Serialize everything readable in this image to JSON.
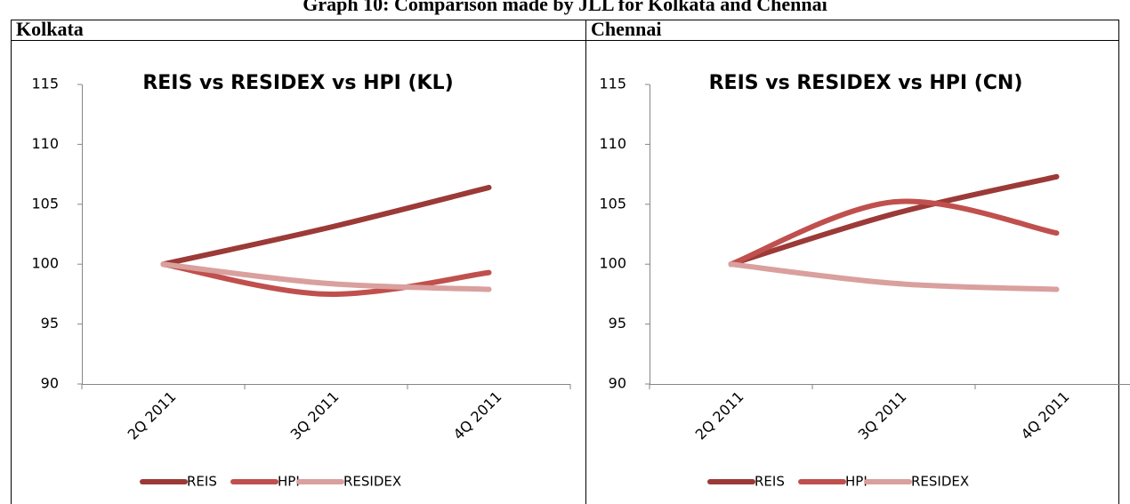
{
  "title": "Graph 10: Comparison made by JLL for Kolkata and Chennai",
  "table": {
    "headers": [
      "Kolkata",
      "Chennai"
    ]
  },
  "chart_data": [
    {
      "type": "line",
      "title": "REIS vs RESIDEX vs HPI (KL)",
      "categories": [
        "2Q 2011",
        "3Q 2011",
        "4Q 2011"
      ],
      "series": [
        {
          "name": "REIS",
          "color": "#9b3a37",
          "values": [
            100,
            103,
            106.4
          ]
        },
        {
          "name": "HPI",
          "color": "#c0504d",
          "values": [
            100,
            97.5,
            99.3
          ]
        },
        {
          "name": "RESIDEX",
          "color": "#d9a09e",
          "values": [
            100,
            98.4,
            97.9
          ]
        }
      ],
      "ylim": [
        90,
        115
      ],
      "yticks": [
        90,
        95,
        100,
        105,
        110,
        115
      ],
      "grid": false,
      "legend": "bottom"
    },
    {
      "type": "line",
      "title": "REIS vs RESIDEX vs HPI (CN)",
      "categories": [
        "2Q 2011",
        "3Q 2011",
        "4Q 2011"
      ],
      "series": [
        {
          "name": "REIS",
          "color": "#9b3a37",
          "values": [
            100,
            104.2,
            107.3
          ]
        },
        {
          "name": "HPI",
          "color": "#c0504d",
          "values": [
            100,
            105.2,
            102.6
          ]
        },
        {
          "name": "RESIDEX",
          "color": "#d9a09e",
          "values": [
            100,
            98.4,
            97.9
          ]
        }
      ],
      "ylim": [
        90,
        115
      ],
      "yticks": [
        90,
        95,
        100,
        105,
        110,
        115
      ],
      "grid": false,
      "legend": "bottom"
    }
  ]
}
